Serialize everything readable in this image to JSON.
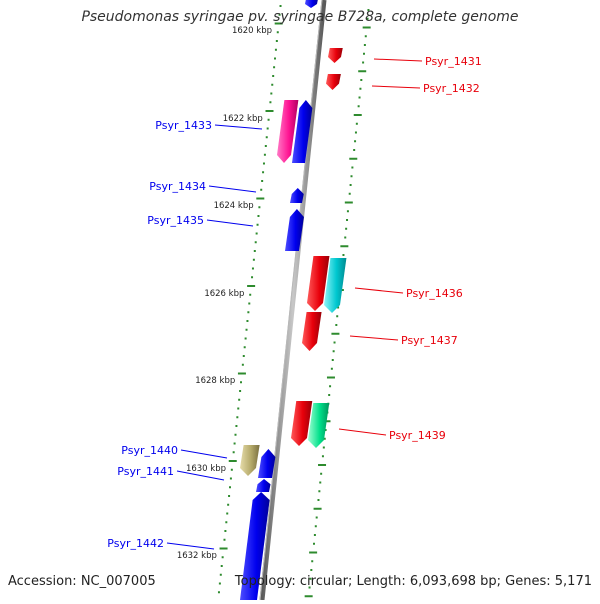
{
  "title": "Pseudomonas syringae pv. syringae B728a, complete genome",
  "accession_label": "Accession: NC_007005",
  "topology_label": "Topology: circular; Length: 6,093,698 bp; Genes: 5,171",
  "kbp_labels": [
    "1620 kbp",
    "1622 kbp",
    "1624 kbp",
    "1626 kbp",
    "1628 kbp",
    "1630 kbp",
    "1632 kbp"
  ],
  "genes": [
    {
      "name": "Psyr_1431",
      "strand": "+",
      "color": "#e8000b"
    },
    {
      "name": "Psyr_1432",
      "strand": "+",
      "color": "#e8000b"
    },
    {
      "name": "Psyr_1433",
      "strand": "-",
      "color": "#0000ee"
    },
    {
      "name": "Psyr_1434",
      "strand": "-",
      "color": "#0000ee"
    },
    {
      "name": "Psyr_1435",
      "strand": "-",
      "color": "#0000ee"
    },
    {
      "name": "Psyr_1436",
      "strand": "+",
      "color": "#e8000b"
    },
    {
      "name": "Psyr_1437",
      "strand": "+",
      "color": "#e8000b"
    },
    {
      "name": "Psyr_1439",
      "strand": "+",
      "color": "#e8000b"
    },
    {
      "name": "Psyr_1440",
      "strand": "-",
      "color": "#0000ee"
    },
    {
      "name": "Psyr_1441",
      "strand": "-",
      "color": "#0000ee"
    },
    {
      "name": "Psyr_1442",
      "strand": "-",
      "color": "#0000ee"
    }
  ],
  "colors": {
    "backbone": "#808080",
    "tick_mark": "#2e8b2e",
    "forward_strand": "#e8000b",
    "reverse_strand": "#0000ee",
    "reverse_feature_pink": "#ff1493",
    "forward_feature_cyan": "#00c8d0",
    "forward_feature_green": "#00e08a",
    "reverse_feature_olive": "#b5aa6a"
  }
}
